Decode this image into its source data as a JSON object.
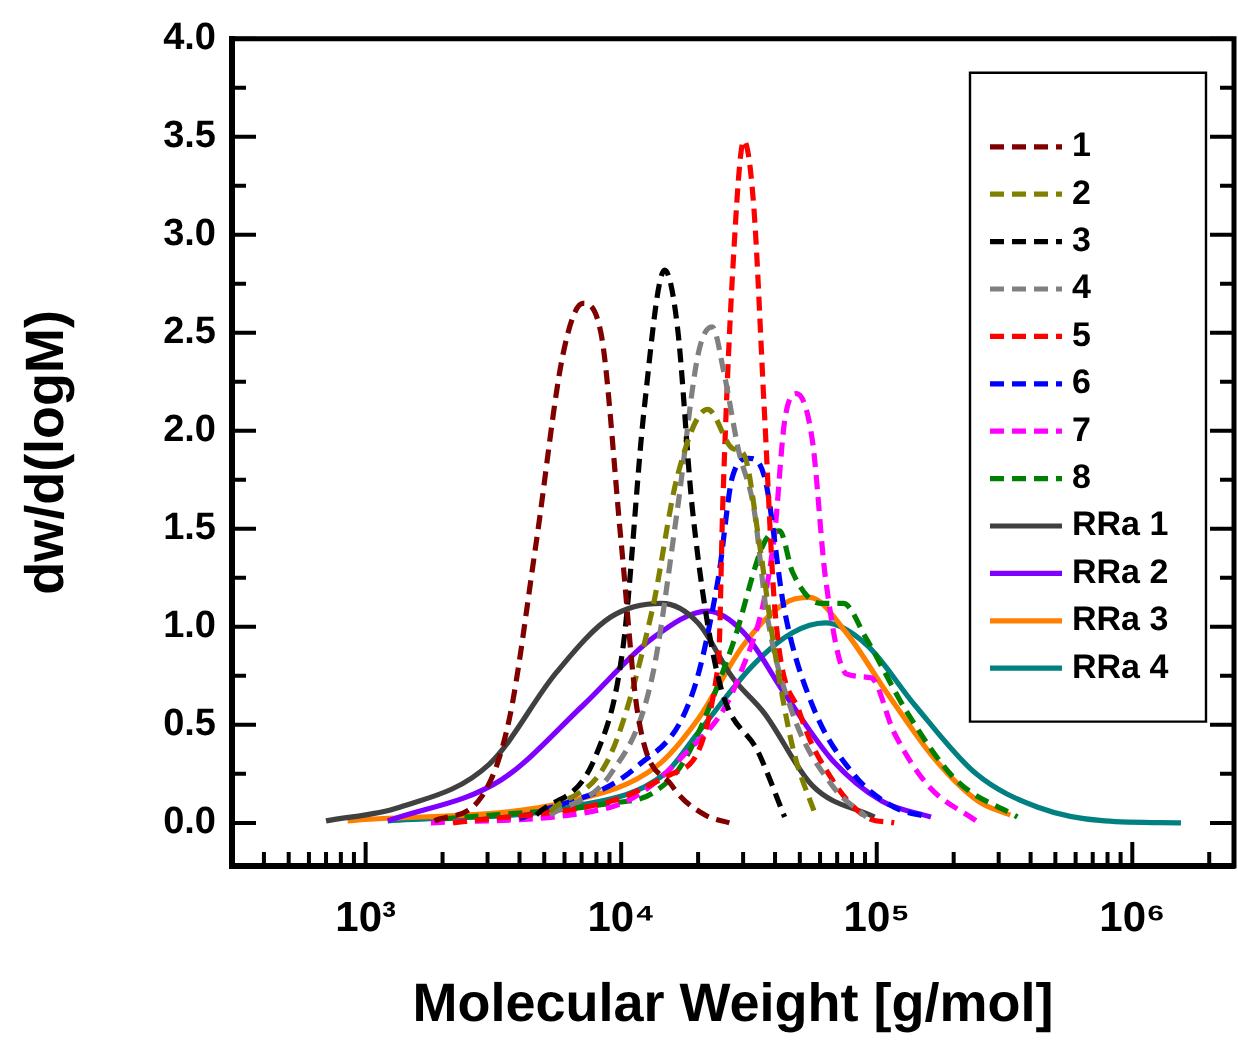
{
  "chart_data": {
    "type": "line",
    "xlabel": "Molecular Weight [g/mol]",
    "ylabel": "dw/d(logM)",
    "log": "x",
    "grid": false,
    "legend": "top right",
    "marker": "none",
    "xlim": [
      300,
      2500000
    ],
    "ylim": [
      -0.22,
      4.0
    ],
    "xticks": [
      {
        "value": 300,
        "label": null
      },
      {
        "value": 400,
        "label": null
      },
      {
        "value": 500,
        "label": null
      },
      {
        "value": 600,
        "label": null
      },
      {
        "value": 700,
        "label": null
      },
      {
        "value": 800,
        "label": null
      },
      {
        "value": 900,
        "label": null
      },
      {
        "value": 1000,
        "label": "10³"
      },
      {
        "value": 2000,
        "label": null
      },
      {
        "value": 3000,
        "label": null
      },
      {
        "value": 4000,
        "label": null
      },
      {
        "value": 5000,
        "label": null
      },
      {
        "value": 6000,
        "label": null
      },
      {
        "value": 7000,
        "label": null
      },
      {
        "value": 8000,
        "label": null
      },
      {
        "value": 9000,
        "label": null
      },
      {
        "value": 10000,
        "label": "10⁴"
      },
      {
        "value": 20000,
        "label": null
      },
      {
        "value": 30000,
        "label": null
      },
      {
        "value": 40000,
        "label": null
      },
      {
        "value": 50000,
        "label": null
      },
      {
        "value": 60000,
        "label": null
      },
      {
        "value": 70000,
        "label": null
      },
      {
        "value": 80000,
        "label": null
      },
      {
        "value": 90000,
        "label": null
      },
      {
        "value": 100000,
        "label": "10⁵"
      },
      {
        "value": 200000,
        "label": null
      },
      {
        "value": 300000,
        "label": null
      },
      {
        "value": 400000,
        "label": null
      },
      {
        "value": 500000,
        "label": null
      },
      {
        "value": 600000,
        "label": null
      },
      {
        "value": 700000,
        "label": null
      },
      {
        "value": 800000,
        "label": null
      },
      {
        "value": 900000,
        "label": null
      },
      {
        "value": 1000000,
        "label": "10⁶"
      },
      {
        "value": 2000000,
        "label": null
      }
    ],
    "yticks": [
      {
        "value": 0,
        "label": "0.0"
      },
      {
        "value": 0.25,
        "label": null
      },
      {
        "value": 0.5,
        "label": "0.5"
      },
      {
        "value": 0.75,
        "label": null
      },
      {
        "value": 1,
        "label": "1.0"
      },
      {
        "value": 1.25,
        "label": null
      },
      {
        "value": 1.5,
        "label": "1.5"
      },
      {
        "value": 1.75,
        "label": null
      },
      {
        "value": 2,
        "label": "2.0"
      },
      {
        "value": 2.25,
        "label": null
      },
      {
        "value": 2.5,
        "label": "2.5"
      },
      {
        "value": 2.75,
        "label": null
      },
      {
        "value": 3,
        "label": "3.0"
      },
      {
        "value": 3.25,
        "label": null
      },
      {
        "value": 3.5,
        "label": "3.5"
      },
      {
        "value": 3.75,
        "label": null
      },
      {
        "value": 4,
        "label": "4.0"
      }
    ],
    "series": [
      {
        "name": "1",
        "color": "#800000",
        "line_style": "dashed",
        "x": [
          1860,
          2830,
          3650,
          4650,
          5920,
          7080,
          8330,
          10000,
          11600,
          15800,
          21300,
          26500
        ],
        "values": [
          0.01,
          0.13,
          0.53,
          1.43,
          2.39,
          2.65,
          2.5,
          1.43,
          0.56,
          0.19,
          0.04,
          0.0
        ]
      },
      {
        "name": "2",
        "color": "#808000",
        "line_style": "dashed",
        "x": [
          5270,
          9100,
          13200,
          16600,
          21800,
          27300,
          30200,
          34700,
          39500,
          46800,
          57900
        ],
        "values": [
          0.06,
          0.35,
          1.08,
          1.77,
          2.11,
          1.91,
          1.88,
          1.43,
          0.91,
          0.39,
          0.03
        ]
      },
      {
        "name": "3",
        "color": "#000000",
        "line_style": "dashed",
        "x": [
          4650,
          8000,
          10200,
          12300,
          14800,
          16600,
          19000,
          24000,
          34700,
          43600
        ],
        "values": [
          0.04,
          0.35,
          0.91,
          2.11,
          2.82,
          2.53,
          1.6,
          0.74,
          0.35,
          0.03
        ]
      },
      {
        "name": "4",
        "color": "#808080",
        "line_style": "dashed",
        "x": [
          5270,
          9100,
          13200,
          16600,
          20000,
          22700,
          25300,
          28800,
          33100,
          37000,
          46800,
          67000,
          91000
        ],
        "values": [
          0.04,
          0.25,
          0.74,
          1.6,
          2.39,
          2.53,
          2.29,
          1.9,
          1.6,
          1.08,
          0.56,
          0.19,
          0.03
        ]
      },
      {
        "name": "5",
        "color": "#ff0000",
        "line_style": "dashed",
        "x": [
          2200,
          9100,
          15800,
          24000,
          25000,
          27300,
          30200,
          33000,
          36300,
          40000,
          50000,
          67000,
          91000,
          117000
        ],
        "values": [
          0.0,
          0.11,
          0.25,
          0.81,
          1.64,
          2.81,
          3.48,
          3.15,
          2.11,
          1.08,
          0.56,
          0.22,
          0.03,
          0.0
        ]
      },
      {
        "name": "6",
        "color": "#0000ff",
        "line_style": "dashed",
        "x": [
          4000,
          11600,
          19000,
          24000,
          27300,
          31600,
          36300,
          43600,
          56000,
          81000,
          117000,
          159000
        ],
        "values": [
          0.02,
          0.29,
          0.66,
          1.25,
          1.77,
          1.86,
          1.77,
          1.08,
          0.6,
          0.25,
          0.08,
          0.03
        ]
      },
      {
        "name": "7",
        "color": "#ff00ff",
        "line_style": "dashed",
        "x": [
          1800,
          9100,
          17700,
          28800,
          39500,
          43600,
          48600,
          56000,
          63000,
          76000,
          95000,
          117000,
          159000,
          245000
        ],
        "values": [
          0.0,
          0.08,
          0.35,
          0.74,
          1.43,
          2.05,
          2.19,
          1.95,
          1.25,
          0.76,
          0.74,
          0.46,
          0.19,
          0.01
        ]
      },
      {
        "name": "8",
        "color": "#008000",
        "line_style": "dashed",
        "x": [
          2000,
          9100,
          13200,
          17700,
          27300,
          36300,
          41700,
          46800,
          60000,
          74000,
          91000,
          132000,
          204000,
          355000
        ],
        "values": [
          0.02,
          0.1,
          0.15,
          0.32,
          0.91,
          1.43,
          1.49,
          1.28,
          1.12,
          1.12,
          0.94,
          0.56,
          0.22,
          0.03
        ]
      },
      {
        "name": "RRa 1",
        "color": "#404040",
        "line_style": "solid",
        "x": [
          700,
          1360,
          3050,
          5600,
          9100,
          14400,
          20000,
          27300,
          36300,
          56000,
          98000
        ],
        "values": [
          0.01,
          0.08,
          0.3,
          0.77,
          1.05,
          1.12,
          1.02,
          0.74,
          0.56,
          0.19,
          0.03
        ]
      },
      {
        "name": "RRa 2",
        "color": "#8000ff",
        "line_style": "solid",
        "x": [
          1220,
          3400,
          7100,
          13200,
          21800,
          30200,
          43600,
          67000,
          105000,
          163000
        ],
        "values": [
          0.01,
          0.22,
          0.6,
          0.94,
          1.08,
          0.97,
          0.66,
          0.32,
          0.11,
          0.03
        ]
      },
      {
        "name": "RRa 3",
        "color": "#ff8000",
        "line_style": "solid",
        "x": [
          850,
          6300,
          13800,
          20000,
          30200,
          43600,
          54600,
          76000,
          110000,
          170000,
          250000,
          333000
        ],
        "values": [
          0.01,
          0.11,
          0.29,
          0.53,
          0.91,
          1.12,
          1.15,
          0.97,
          0.66,
          0.32,
          0.11,
          0.04
        ]
      },
      {
        "name": "RRa 4",
        "color": "#008080",
        "line_style": "solid",
        "x": [
          1220,
          6300,
          14800,
          20000,
          33100,
          46800,
          63000,
          91000,
          141000,
          245000,
          427000,
          780000,
          1550000
        ],
        "values": [
          0.01,
          0.08,
          0.25,
          0.46,
          0.81,
          0.97,
          1.02,
          0.91,
          0.6,
          0.25,
          0.08,
          0.01,
          0.0
        ]
      }
    ]
  }
}
